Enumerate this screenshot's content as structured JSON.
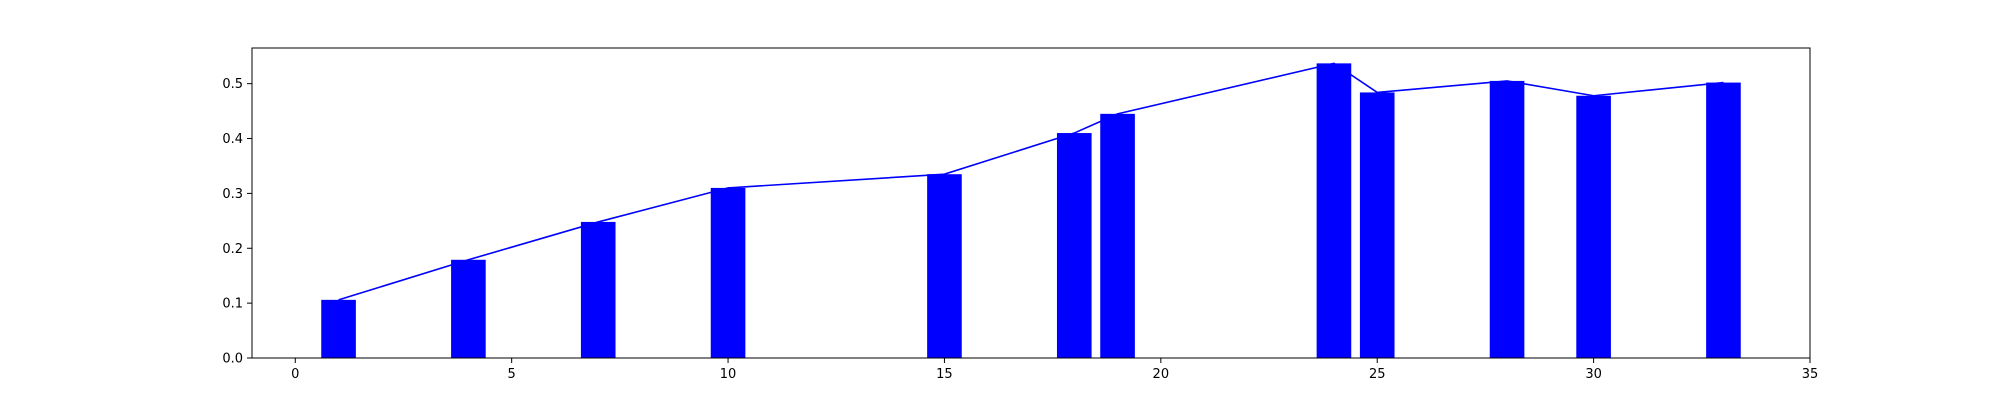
{
  "chart_data": {
    "type": "bar",
    "title": "",
    "xlabel": "",
    "ylabel": "",
    "xlim": [
      -1,
      35
    ],
    "ylim": [
      0,
      0.565
    ],
    "x_ticks": [
      0,
      5,
      10,
      15,
      20,
      25,
      30,
      35
    ],
    "x_tick_labels": [
      "0",
      "5",
      "10",
      "15",
      "20",
      "25",
      "30",
      "35"
    ],
    "y_ticks": [
      0.0,
      0.1,
      0.2,
      0.3,
      0.4,
      0.5
    ],
    "y_tick_labels": [
      "0.0",
      "0.1",
      "0.2",
      "0.3",
      "0.4",
      "0.5"
    ],
    "grid": false,
    "bar_width": 0.8,
    "bar_color": "#0000ff",
    "line_color": "#0000ff",
    "x": [
      1,
      4,
      7,
      10,
      15,
      18,
      19,
      24,
      25,
      28,
      30,
      33
    ],
    "values": [
      0.106,
      0.179,
      0.248,
      0.31,
      0.335,
      0.41,
      0.445,
      0.537,
      0.484,
      0.505,
      0.478,
      0.502
    ],
    "series": [
      {
        "type": "bar",
        "x": [
          1,
          4,
          7,
          10,
          15,
          18,
          19,
          24,
          25,
          28,
          30,
          33
        ],
        "values": [
          0.106,
          0.179,
          0.248,
          0.31,
          0.335,
          0.41,
          0.445,
          0.537,
          0.484,
          0.505,
          0.478,
          0.502
        ]
      },
      {
        "type": "line",
        "x": [
          1,
          4,
          7,
          10,
          15,
          18,
          19,
          24,
          25,
          28,
          30,
          33
        ],
        "values": [
          0.106,
          0.179,
          0.248,
          0.31,
          0.335,
          0.41,
          0.445,
          0.537,
          0.484,
          0.505,
          0.478,
          0.502
        ]
      }
    ]
  }
}
